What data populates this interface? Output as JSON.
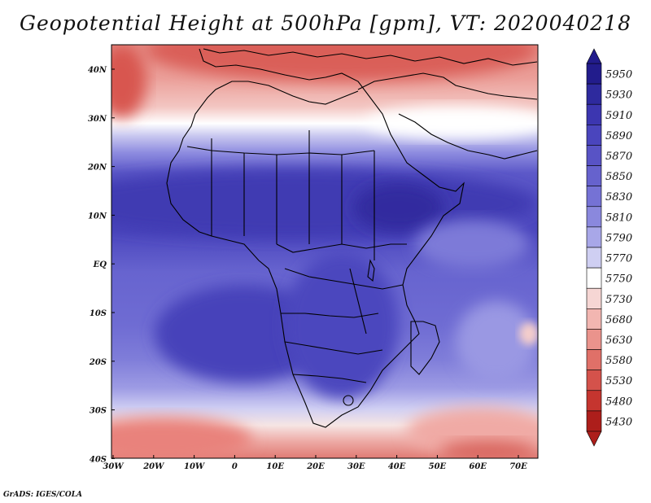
{
  "title": "Geopotential Height at 500hPa [gpm], VT: 2020040218",
  "credit": "GrADS: IGES/COLA",
  "lat_labels": [
    "40N",
    "30N",
    "20N",
    "10N",
    "EQ",
    "10S",
    "20S",
    "30S",
    "40S"
  ],
  "lon_labels": [
    "30W",
    "20W",
    "10W",
    "0",
    "10E",
    "20E",
    "30E",
    "40E",
    "50E",
    "60E",
    "70E"
  ],
  "colorbar": {
    "levels": [
      "5950",
      "5930",
      "5910",
      "5890",
      "5870",
      "5850",
      "5830",
      "5810",
      "5790",
      "5770",
      "5750",
      "5730",
      "5680",
      "5630",
      "5580",
      "5530",
      "5480",
      "5430"
    ],
    "colors": [
      "#221c8c",
      "#2e2a9e",
      "#3c36b0",
      "#4a45bd",
      "#5853c5",
      "#6662cd",
      "#7572d5",
      "#8a88dd",
      "#a8a7e8",
      "#cfcff2",
      "#ffffff",
      "#f6d6d4",
      "#f2b6b1",
      "#ea938c",
      "#e07068",
      "#d4524b",
      "#c5352f",
      "#ad1e1b"
    ]
  },
  "chart_data": {
    "type": "heatmap",
    "variable": "Geopotential Height at 500hPa",
    "units": "gpm",
    "valid_time": "2020040218",
    "lon_range": [
      -30,
      75
    ],
    "lat_range": [
      -40,
      45
    ],
    "bands": [
      {
        "lat_band": "35N-45N",
        "approx_gpm": 5600
      },
      {
        "lat_band": "28N-35N",
        "approx_gpm": 5720
      },
      {
        "lat_band": "22N-28N",
        "approx_gpm": 5830
      },
      {
        "lat_band": "5N-20N",
        "approx_gpm": 5900
      },
      {
        "lat_band": "20S-5N",
        "approx_gpm": 5880
      },
      {
        "lat_band": "30S-20S",
        "approx_gpm": 5800
      },
      {
        "lat_band": "40S-30S",
        "approx_gpm": 5650
      }
    ]
  }
}
